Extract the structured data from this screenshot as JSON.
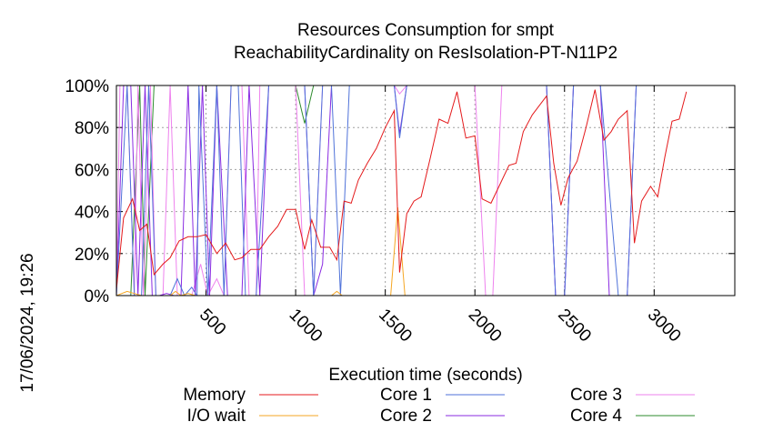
{
  "chart_data": {
    "type": "line",
    "title_line1": "Resources Consumption for smpt",
    "title_line2": "ReachabilityCardinality on ResIsolation-PT-N11P2",
    "xlabel": "Execution time (seconds)",
    "ylabel": "",
    "side_label": "17/06/2024, 19:26",
    "xlim": [
      0,
      3450
    ],
    "ylim": [
      0,
      100
    ],
    "x_ticks": [
      500,
      1000,
      1500,
      2000,
      2500,
      3000
    ],
    "y_ticks": [
      0,
      20,
      40,
      60,
      80,
      100
    ],
    "y_tick_labels": [
      "0%",
      "20%",
      "40%",
      "60%",
      "80%",
      "100%"
    ],
    "grid": true,
    "legend_position": "bottom",
    "series": [
      {
        "name": "Memory",
        "color": "#e41a1c",
        "points": [
          [
            0,
            3
          ],
          [
            40,
            37
          ],
          [
            90,
            46
          ],
          [
            130,
            31
          ],
          [
            170,
            34
          ],
          [
            210,
            10
          ],
          [
            260,
            15
          ],
          [
            300,
            18
          ],
          [
            350,
            26
          ],
          [
            400,
            28
          ],
          [
            450,
            28
          ],
          [
            500,
            29
          ],
          [
            560,
            20
          ],
          [
            610,
            25
          ],
          [
            660,
            17
          ],
          [
            700,
            18
          ],
          [
            750,
            22
          ],
          [
            800,
            22
          ],
          [
            850,
            28
          ],
          [
            900,
            33
          ],
          [
            950,
            41
          ],
          [
            1000,
            41
          ],
          [
            1050,
            22
          ],
          [
            1090,
            36
          ],
          [
            1140,
            23
          ],
          [
            1190,
            23
          ],
          [
            1230,
            17
          ],
          [
            1270,
            45
          ],
          [
            1310,
            44
          ],
          [
            1350,
            55
          ],
          [
            1400,
            63
          ],
          [
            1450,
            70
          ],
          [
            1500,
            80
          ],
          [
            1550,
            88
          ],
          [
            1580,
            11
          ],
          [
            1620,
            39
          ],
          [
            1660,
            45
          ],
          [
            1700,
            47
          ],
          [
            1750,
            65
          ],
          [
            1800,
            84
          ],
          [
            1850,
            82
          ],
          [
            1900,
            97
          ],
          [
            1950,
            75
          ],
          [
            2000,
            76
          ],
          [
            2040,
            46
          ],
          [
            2090,
            44
          ],
          [
            2140,
            53
          ],
          [
            2190,
            62
          ],
          [
            2230,
            63
          ],
          [
            2270,
            78
          ],
          [
            2320,
            86
          ],
          [
            2400,
            95
          ],
          [
            2440,
            63
          ],
          [
            2480,
            43
          ],
          [
            2520,
            56
          ],
          [
            2570,
            64
          ],
          [
            2620,
            80
          ],
          [
            2670,
            98
          ],
          [
            2720,
            74
          ],
          [
            2760,
            78
          ],
          [
            2800,
            84
          ],
          [
            2850,
            88
          ],
          [
            2890,
            25
          ],
          [
            2930,
            45
          ],
          [
            2980,
            52
          ],
          [
            3020,
            47
          ],
          [
            3060,
            66
          ],
          [
            3100,
            83
          ],
          [
            3140,
            84
          ],
          [
            3180,
            97
          ]
        ]
      },
      {
        "name": "I/O wait",
        "color": "#f5a623",
        "points": [
          [
            0,
            0
          ],
          [
            60,
            2
          ],
          [
            100,
            1
          ],
          [
            140,
            0
          ],
          [
            300,
            0
          ],
          [
            330,
            2
          ],
          [
            360,
            0
          ],
          [
            400,
            1
          ],
          [
            440,
            0
          ],
          [
            500,
            0
          ],
          [
            1200,
            0
          ],
          [
            1230,
            2
          ],
          [
            1260,
            0
          ],
          [
            1530,
            0
          ],
          [
            1570,
            42
          ],
          [
            1610,
            0
          ],
          [
            3200,
            0
          ]
        ]
      },
      {
        "name": "Core 1",
        "color": "#4f72d9",
        "points": [
          [
            0,
            0
          ],
          [
            60,
            100
          ],
          [
            100,
            0
          ],
          [
            140,
            0
          ],
          [
            180,
            100
          ],
          [
            220,
            0
          ],
          [
            260,
            0
          ],
          [
            300,
            0
          ],
          [
            340,
            8
          ],
          [
            380,
            0
          ],
          [
            420,
            4
          ],
          [
            450,
            0
          ],
          [
            460,
            100
          ],
          [
            510,
            0
          ],
          [
            560,
            100
          ],
          [
            600,
            0
          ],
          [
            640,
            100
          ],
          [
            680,
            100
          ],
          [
            720,
            0
          ],
          [
            780,
            0
          ],
          [
            850,
            100
          ],
          [
            900,
            100
          ],
          [
            1050,
            100
          ],
          [
            1100,
            0
          ],
          [
            1150,
            100
          ],
          [
            1200,
            100
          ],
          [
            1250,
            0
          ],
          [
            1300,
            100
          ],
          [
            1550,
            100
          ],
          [
            1580,
            75
          ],
          [
            1620,
            100
          ],
          [
            1700,
            100
          ],
          [
            2050,
            100
          ],
          [
            2100,
            100
          ],
          [
            2400,
            100
          ],
          [
            2450,
            0
          ],
          [
            2500,
            0
          ],
          [
            2550,
            100
          ],
          [
            2700,
            100
          ],
          [
            2800,
            0
          ],
          [
            2850,
            0
          ],
          [
            2900,
            100
          ],
          [
            3200,
            100
          ]
        ]
      },
      {
        "name": "Core 2",
        "color": "#8a2be2",
        "points": [
          [
            0,
            0
          ],
          [
            40,
            100
          ],
          [
            80,
            100
          ],
          [
            120,
            0
          ],
          [
            160,
            100
          ],
          [
            200,
            0
          ],
          [
            240,
            0
          ],
          [
            280,
            1
          ],
          [
            320,
            0
          ],
          [
            360,
            0
          ],
          [
            400,
            100
          ],
          [
            440,
            0
          ],
          [
            480,
            100
          ],
          [
            520,
            0
          ],
          [
            560,
            100
          ],
          [
            620,
            0
          ],
          [
            660,
            0
          ],
          [
            700,
            0
          ],
          [
            740,
            100
          ],
          [
            800,
            0
          ],
          [
            850,
            100
          ],
          [
            1000,
            100
          ],
          [
            1050,
            100
          ],
          [
            1100,
            0
          ],
          [
            1150,
            15
          ],
          [
            1200,
            100
          ],
          [
            1550,
            100
          ],
          [
            1580,
            77
          ],
          [
            1620,
            100
          ],
          [
            2400,
            100
          ],
          [
            2450,
            0
          ],
          [
            2500,
            0
          ],
          [
            2550,
            100
          ],
          [
            2700,
            100
          ],
          [
            2750,
            0
          ],
          [
            2850,
            0
          ],
          [
            2900,
            100
          ],
          [
            3200,
            100
          ]
        ]
      },
      {
        "name": "Core 3",
        "color": "#ee82ee",
        "points": [
          [
            0,
            0
          ],
          [
            20,
            100
          ],
          [
            60,
            100
          ],
          [
            100,
            0
          ],
          [
            120,
            100
          ],
          [
            150,
            0
          ],
          [
            190,
            100
          ],
          [
            220,
            0
          ],
          [
            260,
            0
          ],
          [
            300,
            100
          ],
          [
            340,
            0
          ],
          [
            380,
            0
          ],
          [
            420,
            0
          ],
          [
            470,
            15
          ],
          [
            510,
            0
          ],
          [
            560,
            8
          ],
          [
            600,
            0
          ],
          [
            640,
            100
          ],
          [
            700,
            100
          ],
          [
            740,
            0
          ],
          [
            780,
            0
          ],
          [
            800,
            100
          ],
          [
            1000,
            100
          ],
          [
            1050,
            0
          ],
          [
            1100,
            0
          ],
          [
            1150,
            100
          ],
          [
            1550,
            100
          ],
          [
            1580,
            96
          ],
          [
            1620,
            100
          ],
          [
            2000,
            100
          ],
          [
            2060,
            0
          ],
          [
            2100,
            0
          ],
          [
            2150,
            100
          ],
          [
            2400,
            100
          ],
          [
            2450,
            0
          ],
          [
            2500,
            0
          ],
          [
            2550,
            100
          ],
          [
            3200,
            100
          ]
        ]
      },
      {
        "name": "Core 4",
        "color": "#2e8b2e",
        "points": [
          [
            0,
            0
          ],
          [
            80,
            0
          ],
          [
            130,
            100
          ],
          [
            160,
            0
          ],
          [
            210,
            100
          ],
          [
            260,
            100
          ],
          [
            1000,
            100
          ],
          [
            1050,
            82
          ],
          [
            1100,
            100
          ],
          [
            3200,
            100
          ]
        ]
      }
    ]
  }
}
